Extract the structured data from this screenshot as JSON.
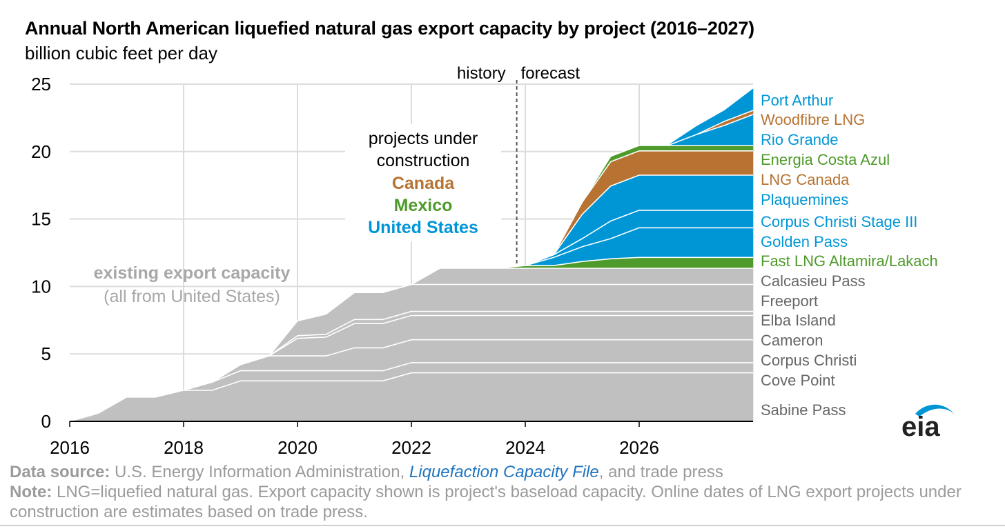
{
  "chart_data": {
    "type": "area",
    "title": "Annual North American liquefied natural gas export capacity by project (2016–2027)",
    "ylabel": "billion cubic feet per day",
    "ylim": [
      0,
      25
    ],
    "xlim": [
      2016,
      2028
    ],
    "yticks": [
      "0",
      "5",
      "10",
      "15",
      "20",
      "25"
    ],
    "xticks": [
      "2016",
      "2018",
      "2020",
      "2022",
      "2024",
      "2026"
    ],
    "grid": true,
    "history_label": "history",
    "forecast_label": "forecast",
    "forecast_divider_x": 2023.85,
    "annotation_existing": {
      "line1": "existing export capacity",
      "line2": "(all from United States)"
    },
    "annotation_construction": {
      "line1": "projects under",
      "line2": "construction",
      "canada": "Canada",
      "mexico": "Mexico",
      "us": "United States"
    },
    "colors": {
      "existing": "#c0c0c0",
      "us": "#0096d6",
      "canada": "#b87333",
      "mexico": "#4e9a2a",
      "label_existing": "#666666",
      "divider": "#555555"
    },
    "x": [
      2016,
      2016.5,
      2017,
      2017.5,
      2018,
      2018.5,
      2019,
      2019.5,
      2020,
      2020.5,
      2021,
      2021.5,
      2022,
      2022.5,
      2023,
      2023.5,
      2024,
      2024.5,
      2025,
      2025.5,
      2026,
      2026.5,
      2027,
      2027.5,
      2028
    ],
    "series": [
      {
        "name": "Sabine Pass",
        "group": "existing",
        "values": [
          0,
          0.6,
          1.8,
          1.8,
          2.3,
          2.3,
          3.0,
          3.0,
          3.0,
          3.0,
          3.0,
          3.0,
          3.6,
          3.6,
          3.6,
          3.6,
          3.6,
          3.6,
          3.6,
          3.6,
          3.6,
          3.6,
          3.6,
          3.6,
          3.6
        ]
      },
      {
        "name": "Cove Point",
        "group": "existing",
        "values": [
          0,
          0,
          0,
          0,
          0,
          0.6,
          0.75,
          0.75,
          0.75,
          0.75,
          0.75,
          0.75,
          0.75,
          0.75,
          0.75,
          0.75,
          0.75,
          0.75,
          0.75,
          0.75,
          0.75,
          0.75,
          0.75,
          0.75,
          0.75
        ]
      },
      {
        "name": "Corpus Christi",
        "group": "existing",
        "values": [
          0,
          0,
          0,
          0,
          0,
          0,
          0.45,
          1.1,
          1.1,
          1.1,
          1.7,
          1.7,
          1.7,
          1.7,
          1.7,
          1.7,
          1.7,
          1.7,
          1.7,
          1.7,
          1.7,
          1.7,
          1.7,
          1.7,
          1.7
        ]
      },
      {
        "name": "Cameron",
        "group": "existing",
        "values": [
          0,
          0,
          0,
          0,
          0,
          0,
          0,
          0,
          1.3,
          1.4,
          1.8,
          1.8,
          1.8,
          1.8,
          1.8,
          1.8,
          1.8,
          1.8,
          1.8,
          1.8,
          1.8,
          1.8,
          1.8,
          1.8,
          1.8
        ]
      },
      {
        "name": "Elba Island",
        "group": "existing",
        "values": [
          0,
          0,
          0,
          0,
          0,
          0,
          0,
          0,
          0.2,
          0.2,
          0.3,
          0.3,
          0.3,
          0.3,
          0.3,
          0.3,
          0.3,
          0.3,
          0.3,
          0.3,
          0.3,
          0.3,
          0.3,
          0.3,
          0.3
        ]
      },
      {
        "name": "Freeport",
        "group": "existing",
        "values": [
          0,
          0,
          0,
          0,
          0,
          0,
          0,
          0,
          1.1,
          1.5,
          2.0,
          2.0,
          2.0,
          2.0,
          2.0,
          2.0,
          2.0,
          2.0,
          2.0,
          2.0,
          2.0,
          2.0,
          2.0,
          2.0,
          2.0
        ]
      },
      {
        "name": "Calcasieu Pass",
        "group": "existing",
        "values": [
          0,
          0,
          0,
          0,
          0,
          0,
          0,
          0,
          0,
          0,
          0,
          0,
          0,
          1.2,
          1.2,
          1.2,
          1.2,
          1.2,
          1.2,
          1.2,
          1.2,
          1.2,
          1.2,
          1.2,
          1.2
        ]
      },
      {
        "name": "Fast LNG Altamira/Lakach",
        "group": "mexico",
        "values": [
          0,
          0,
          0,
          0,
          0,
          0,
          0,
          0,
          0,
          0,
          0,
          0,
          0,
          0,
          0,
          0,
          0.2,
          0.2,
          0.5,
          0.7,
          0.8,
          0.8,
          0.8,
          0.8,
          0.8
        ]
      },
      {
        "name": "Golden Pass",
        "group": "us",
        "values": [
          0,
          0,
          0,
          0,
          0,
          0,
          0,
          0,
          0,
          0,
          0,
          0,
          0,
          0,
          0,
          0,
          0,
          0.6,
          1.1,
          1.5,
          2.2,
          2.2,
          2.2,
          2.2,
          2.2
        ]
      },
      {
        "name": "Corpus Christi Stage III",
        "group": "us",
        "values": [
          0,
          0,
          0,
          0,
          0,
          0,
          0,
          0,
          0,
          0,
          0,
          0,
          0,
          0,
          0,
          0,
          0,
          0.2,
          0.6,
          1.3,
          1.3,
          1.3,
          1.3,
          1.3,
          1.3
        ]
      },
      {
        "name": "Plaquemines",
        "group": "us",
        "values": [
          0,
          0,
          0,
          0,
          0,
          0,
          0,
          0,
          0,
          0,
          0,
          0,
          0,
          0,
          0,
          0,
          0,
          0,
          1.8,
          2.6,
          2.6,
          2.6,
          2.6,
          2.6,
          2.6
        ]
      },
      {
        "name": "LNG Canada",
        "group": "canada",
        "values": [
          0,
          0,
          0,
          0,
          0,
          0,
          0,
          0,
          0,
          0,
          0,
          0,
          0,
          0,
          0,
          0,
          0,
          0,
          0.9,
          1.8,
          1.8,
          1.8,
          1.8,
          1.8,
          1.8
        ]
      },
      {
        "name": "Energia Costa Azul",
        "group": "mexico",
        "values": [
          0,
          0,
          0,
          0,
          0,
          0,
          0,
          0,
          0,
          0,
          0,
          0,
          0,
          0,
          0,
          0,
          0,
          0,
          0,
          0.4,
          0.4,
          0.4,
          0.4,
          0.4,
          0.4
        ]
      },
      {
        "name": "Rio Grande",
        "group": "us",
        "values": [
          0,
          0,
          0,
          0,
          0,
          0,
          0,
          0,
          0,
          0,
          0,
          0,
          0,
          0,
          0,
          0,
          0,
          0,
          0,
          0,
          0,
          0,
          0.8,
          1.5,
          2.3
        ]
      },
      {
        "name": "Woodfibre LNG",
        "group": "canada",
        "values": [
          0,
          0,
          0,
          0,
          0,
          0,
          0,
          0,
          0,
          0,
          0,
          0,
          0,
          0,
          0,
          0,
          0,
          0,
          0,
          0,
          0,
          0,
          0,
          0.3,
          0.3
        ]
      },
      {
        "name": "Port Arthur",
        "group": "us",
        "values": [
          0,
          0,
          0,
          0,
          0,
          0,
          0,
          0,
          0,
          0,
          0,
          0,
          0,
          0,
          0,
          0,
          0,
          0,
          0,
          0,
          0,
          0,
          0.6,
          0.8,
          1.6
        ]
      }
    ],
    "label_order_top_to_bottom": [
      "Port Arthur",
      "Woodfibre LNG",
      "Rio Grande",
      "Energia Costa Azul",
      "LNG Canada",
      "Plaquemines",
      "Corpus Christi Stage III",
      "Golden Pass",
      "Fast LNG Altamira/Lakach",
      "Calcasieu Pass",
      "Freeport",
      "Elba Island",
      "Cameron",
      "Corpus Christi",
      "Cove Point",
      "Sabine Pass"
    ]
  },
  "footer": {
    "source_label": "Data source:",
    "source_text_1": " U.S. Energy Information Administration, ",
    "source_link": "Liquefaction Capacity File",
    "source_text_2": ", and trade press",
    "note_label": "Note:",
    "note_text": " LNG=liquefied natural gas. Export capacity shown is project's baseload capacity. Online dates of LNG export projects under construction are estimates based on trade press."
  },
  "logo": {
    "text": "eia",
    "color": "#0096d6"
  }
}
